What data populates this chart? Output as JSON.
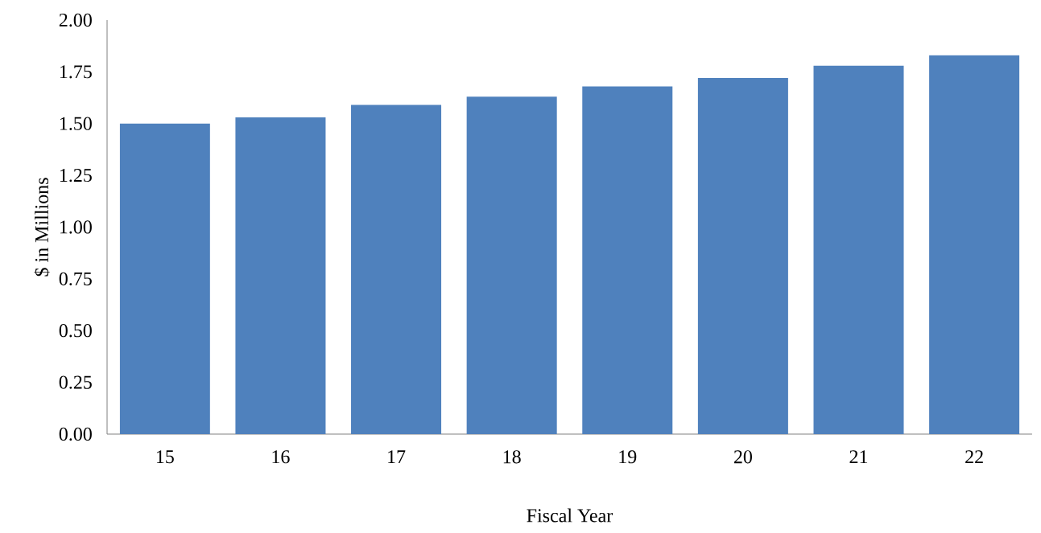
{
  "chart_data": {
    "type": "bar",
    "xlabel": "Fiscal Year",
    "ylabel": "$ in Millions",
    "categories": [
      "15",
      "16",
      "17",
      "18",
      "19",
      "20",
      "21",
      "22"
    ],
    "values": [
      1.5,
      1.53,
      1.59,
      1.63,
      1.68,
      1.72,
      1.78,
      1.83
    ],
    "color": "#4f81bd",
    "ylim": [
      0,
      2
    ],
    "yticks": [
      {
        "value": 0,
        "label": "0.00"
      },
      {
        "value": 0.25,
        "label": "0.25"
      },
      {
        "value": 0.5,
        "label": "0.50"
      },
      {
        "value": 0.75,
        "label": "0.75"
      },
      {
        "value": 1,
        "label": "1.00"
      },
      {
        "value": 1.25,
        "label": "1.25"
      },
      {
        "value": 1.5,
        "label": "1.50"
      },
      {
        "value": 1.75,
        "label": "1.75"
      },
      {
        "value": 2,
        "label": "2.00"
      }
    ],
    "grid": false
  }
}
